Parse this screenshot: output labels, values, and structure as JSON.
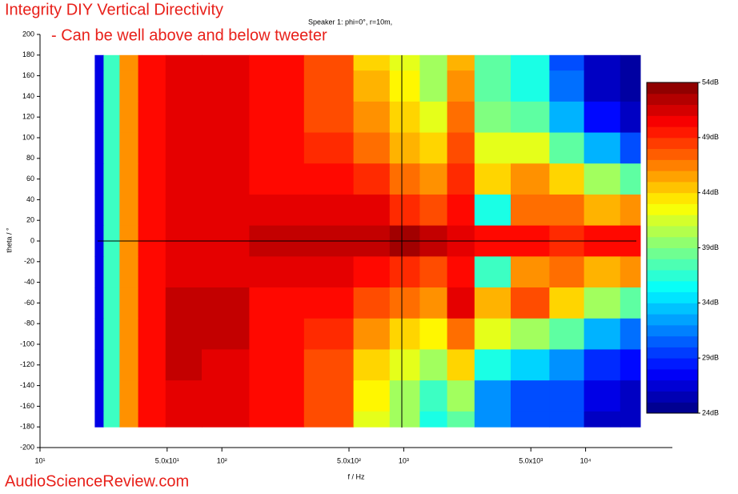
{
  "chart_data": {
    "type": "heatmap",
    "title": "Integrity DIY Vertical Directivity",
    "annotation": "- Can be well above and below tweeter",
    "subtitle": "Speaker 1: phi=0°, r=10m,",
    "xlabel": "f / Hz",
    "ylabel": "theta / °",
    "watermark": "AudioScienceReview.com",
    "log_x": true,
    "xlim": [
      10,
      30000
    ],
    "xticks": [
      {
        "value": 10,
        "label": "10¹"
      },
      {
        "value": 50,
        "label": "5.0x10¹"
      },
      {
        "value": 100,
        "label": "10²"
      },
      {
        "value": 500,
        "label": "5.0x10²"
      },
      {
        "value": 1000,
        "label": "10³"
      },
      {
        "value": 5000,
        "label": "5.0x10³"
      },
      {
        "value": 10000,
        "label": "10⁴"
      }
    ],
    "ylim": [
      -200,
      200
    ],
    "yticks": [
      -200,
      -180,
      -160,
      -140,
      -120,
      -100,
      -80,
      -60,
      -40,
      -20,
      0,
      20,
      40,
      60,
      80,
      100,
      120,
      140,
      160,
      180,
      200
    ],
    "x": [
      20,
      25,
      30,
      40,
      60,
      100,
      200,
      400,
      700,
      1000,
      1500,
      2000,
      3000,
      5000,
      8000,
      12000,
      20000
    ],
    "y": [
      180,
      150,
      120,
      90,
      60,
      30,
      0,
      -30,
      -60,
      -90,
      -120,
      -150,
      -180
    ],
    "z": [
      [
        27,
        37,
        46,
        50,
        51,
        51,
        50,
        48,
        44,
        42,
        40,
        45,
        38,
        36,
        30,
        26,
        25
      ],
      [
        27,
        37,
        46,
        50,
        51,
        51,
        50,
        48,
        45,
        43,
        40,
        46,
        38,
        36,
        31,
        26,
        25
      ],
      [
        27,
        37,
        46,
        50,
        51,
        51,
        50,
        48,
        46,
        44,
        42,
        47,
        39,
        38,
        33,
        28,
        26
      ],
      [
        27,
        37,
        46,
        50,
        51,
        51,
        50,
        49,
        47,
        45,
        44,
        48,
        42,
        42,
        38,
        33,
        30
      ],
      [
        27,
        37,
        46,
        50,
        51,
        51,
        50,
        50,
        49,
        47,
        46,
        49,
        44,
        46,
        44,
        40,
        38
      ],
      [
        27,
        37,
        46,
        50,
        51,
        51,
        51,
        51,
        51,
        49,
        48,
        50,
        36,
        47,
        47,
        45,
        46
      ],
      [
        27,
        37,
        46,
        50,
        51,
        51,
        52,
        52,
        52,
        53,
        52,
        51,
        50,
        50,
        49,
        50,
        50
      ],
      [
        27,
        37,
        46,
        50,
        51,
        51,
        51,
        51,
        50,
        49,
        48,
        50,
        37,
        46,
        47,
        45,
        46
      ],
      [
        27,
        37,
        46,
        50,
        52,
        52,
        50,
        50,
        48,
        47,
        46,
        51,
        45,
        48,
        44,
        40,
        38
      ],
      [
        27,
        37,
        46,
        50,
        52,
        52,
        50,
        49,
        46,
        44,
        43,
        47,
        42,
        40,
        38,
        33,
        31
      ],
      [
        27,
        37,
        46,
        50,
        52,
        51,
        50,
        48,
        44,
        42,
        40,
        44,
        36,
        34,
        32,
        29,
        28
      ],
      [
        27,
        37,
        46,
        50,
        51,
        51,
        50,
        48,
        43,
        40,
        37,
        40,
        32,
        30,
        30,
        27,
        26
      ],
      [
        27,
        37,
        46,
        50,
        51,
        51,
        50,
        48,
        42,
        40,
        36,
        38,
        32,
        30,
        30,
        26,
        26
      ]
    ],
    "zlim": [
      24,
      54
    ],
    "zticks": [
      {
        "value": 24,
        "label": "24dB"
      },
      {
        "value": 29,
        "label": "29dB"
      },
      {
        "value": 34,
        "label": "34dB"
      },
      {
        "value": 39,
        "label": "39dB"
      },
      {
        "value": 44,
        "label": "44dB"
      },
      {
        "value": 49,
        "label": "49dB"
      },
      {
        "value": 54,
        "label": "54dB"
      }
    ]
  }
}
